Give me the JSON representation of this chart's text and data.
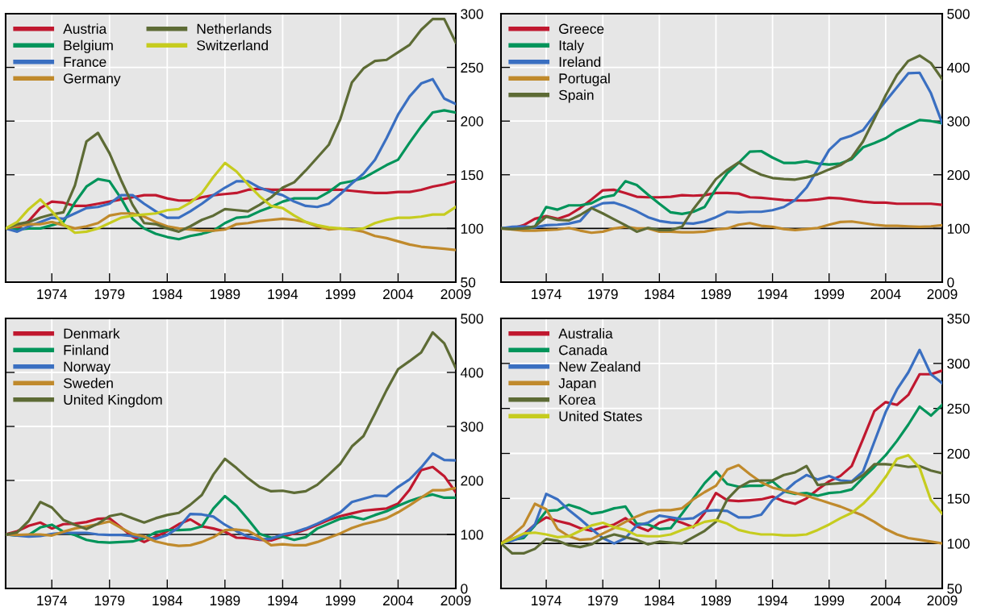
{
  "chart_data": [
    {
      "type": "line",
      "x": [
        1970,
        1971,
        1972,
        1973,
        1974,
        1975,
        1976,
        1977,
        1978,
        1979,
        1980,
        1981,
        1982,
        1983,
        1984,
        1985,
        1986,
        1987,
        1988,
        1989,
        1990,
        1991,
        1992,
        1993,
        1994,
        1995,
        1996,
        1997,
        1998,
        1999,
        2000,
        2001,
        2002,
        2003,
        2004,
        2005,
        2006,
        2007,
        2008,
        2009
      ],
      "xlim": [
        1970,
        2009
      ],
      "xticks": [
        1974,
        1979,
        1984,
        1989,
        1994,
        1999,
        2004,
        2009
      ],
      "ylim": [
        50,
        300
      ],
      "yticks": [
        50,
        100,
        150,
        200,
        250,
        300
      ],
      "grid": true,
      "legend": "top left",
      "ref_lines": [
        {
          "axis": "y",
          "value": 100,
          "color": "#000000"
        }
      ],
      "series": [
        {
          "name": "Austria",
          "color": "#c0182f",
          "values": [
            100,
            100,
            107,
            119,
            125,
            124,
            121,
            121,
            123,
            125,
            127,
            129,
            131,
            131,
            128,
            126,
            126,
            129,
            131,
            132,
            133,
            136,
            137,
            136,
            136,
            136,
            136,
            136,
            136,
            136,
            135,
            134,
            133,
            133,
            134,
            134,
            136,
            139,
            141,
            144
          ]
        },
        {
          "name": "Belgium",
          "color": "#00945a",
          "values": [
            100,
            99,
            100,
            100,
            103,
            106,
            124,
            139,
            146,
            144,
            128,
            109,
            100,
            95,
            92,
            90,
            93,
            95,
            98,
            105,
            110,
            111,
            116,
            120,
            125,
            128,
            128,
            128,
            134,
            142,
            144,
            147,
            153,
            159,
            164,
            180,
            195,
            208,
            210,
            208
          ]
        },
        {
          "name": "France",
          "color": "#3a6fc1",
          "values": [
            100,
            97,
            102,
            106,
            110,
            109,
            114,
            119,
            120,
            123,
            131,
            131,
            123,
            116,
            110,
            110,
            116,
            123,
            131,
            138,
            144,
            144,
            138,
            134,
            131,
            125,
            121,
            120,
            123,
            132,
            142,
            151,
            164,
            184,
            206,
            223,
            235,
            239,
            221,
            216
          ]
        },
        {
          "name": "Germany",
          "color": "#c08a2c",
          "values": [
            100,
            102,
            104,
            104,
            106,
            103,
            100,
            102,
            105,
            112,
            114,
            114,
            111,
            106,
            102,
            100,
            99,
            98,
            98,
            99,
            104,
            105,
            107,
            108,
            109,
            108,
            106,
            102,
            99,
            100,
            99,
            97,
            93,
            91,
            88,
            85,
            83,
            82,
            81,
            80
          ]
        },
        {
          "name": "Netherlands",
          "color": "#5d6b35",
          "values": [
            100,
            104,
            106,
            110,
            113,
            115,
            140,
            181,
            189,
            170,
            145,
            122,
            105,
            104,
            100,
            97,
            102,
            108,
            112,
            118,
            117,
            116,
            122,
            129,
            138,
            143,
            154,
            166,
            178,
            202,
            236,
            249,
            256,
            257,
            264,
            271,
            285,
            295,
            295,
            273
          ]
        },
        {
          "name": "Switzerland",
          "color": "#c6cc1f",
          "values": [
            100,
            106,
            118,
            127,
            116,
            104,
            96,
            97,
            100,
            105,
            110,
            112,
            113,
            114,
            117,
            118,
            124,
            133,
            148,
            161,
            153,
            141,
            130,
            121,
            119,
            112,
            106,
            103,
            101,
            100,
            99,
            100,
            105,
            108,
            110,
            110,
            111,
            113,
            113,
            120
          ]
        }
      ]
    },
    {
      "type": "line",
      "x": [
        1970,
        1971,
        1972,
        1973,
        1974,
        1975,
        1976,
        1977,
        1978,
        1979,
        1980,
        1981,
        1982,
        1983,
        1984,
        1985,
        1986,
        1987,
        1988,
        1989,
        1990,
        1991,
        1992,
        1993,
        1994,
        1995,
        1996,
        1997,
        1998,
        1999,
        2000,
        2001,
        2002,
        2003,
        2004,
        2005,
        2006,
        2007,
        2008,
        2009
      ],
      "xlim": [
        1970,
        2009
      ],
      "xticks": [
        1974,
        1979,
        1984,
        1989,
        1994,
        1999,
        2004,
        2009
      ],
      "ylim": [
        0,
        500
      ],
      "yticks": [
        0,
        100,
        200,
        300,
        400,
        500
      ],
      "grid": true,
      "legend": "top left",
      "ref_lines": [
        {
          "axis": "y",
          "value": 100,
          "color": "#000000"
        }
      ],
      "series": [
        {
          "name": "Greece",
          "color": "#c0182f",
          "values": [
            100,
            100,
            106,
            118,
            123,
            118,
            125,
            138,
            154,
            171,
            172,
            166,
            159,
            158,
            158,
            159,
            162,
            161,
            162,
            166,
            166,
            165,
            158,
            157,
            155,
            153,
            152,
            152,
            154,
            157,
            156,
            153,
            150,
            148,
            148,
            146,
            146,
            146,
            146,
            144
          ]
        },
        {
          "name": "Italy",
          "color": "#00945a",
          "values": [
            100,
            101,
            98,
            103,
            140,
            135,
            143,
            143,
            147,
            158,
            162,
            188,
            181,
            163,
            146,
            130,
            127,
            131,
            140,
            174,
            203,
            222,
            243,
            244,
            232,
            222,
            222,
            225,
            221,
            219,
            221,
            229,
            251,
            259,
            268,
            282,
            292,
            302,
            300,
            296
          ]
        },
        {
          "name": "Ireland",
          "color": "#3a6fc1",
          "values": [
            100,
            103,
            104,
            102,
            106,
            107,
            109,
            114,
            138,
            147,
            148,
            141,
            132,
            121,
            114,
            111,
            110,
            109,
            113,
            121,
            131,
            130,
            131,
            131,
            134,
            140,
            153,
            176,
            210,
            246,
            266,
            273,
            283,
            311,
            337,
            363,
            389,
            390,
            352,
            296
          ]
        },
        {
          "name": "Portugal",
          "color": "#c08a2c",
          "values": [
            100,
            98,
            96,
            96,
            97,
            98,
            101,
            96,
            92,
            94,
            100,
            103,
            100,
            100,
            94,
            94,
            93,
            93,
            94,
            98,
            100,
            107,
            110,
            105,
            103,
            99,
            97,
            99,
            101,
            107,
            112,
            113,
            110,
            107,
            105,
            105,
            104,
            103,
            104,
            106
          ]
        },
        {
          "name": "Spain",
          "color": "#5d6b35",
          "values": [
            100,
            99,
            100,
            104,
            122,
            116,
            115,
            125,
            138,
            128,
            117,
            106,
            94,
            101,
            97,
            97,
            103,
            136,
            163,
            192,
            209,
            223,
            210,
            200,
            194,
            192,
            191,
            195,
            201,
            210,
            218,
            232,
            262,
            304,
            348,
            386,
            412,
            422,
            408,
            378
          ]
        }
      ]
    },
    {
      "type": "line",
      "x": [
        1970,
        1971,
        1972,
        1973,
        1974,
        1975,
        1976,
        1977,
        1978,
        1979,
        1980,
        1981,
        1982,
        1983,
        1984,
        1985,
        1986,
        1987,
        1988,
        1989,
        1990,
        1991,
        1992,
        1993,
        1994,
        1995,
        1996,
        1997,
        1998,
        1999,
        2000,
        2001,
        2002,
        2003,
        2004,
        2005,
        2006,
        2007,
        2008,
        2009
      ],
      "xlim": [
        1970,
        2009
      ],
      "xticks": [
        1974,
        1979,
        1984,
        1989,
        1994,
        1999,
        2004,
        2009
      ],
      "ylim": [
        0,
        500
      ],
      "yticks": [
        0,
        100,
        200,
        300,
        400,
        500
      ],
      "grid": true,
      "legend": "top left",
      "ref_lines": [
        {
          "axis": "y",
          "value": 100,
          "color": "#000000"
        }
      ],
      "series": [
        {
          "name": "Denmark",
          "color": "#c0182f",
          "values": [
            100,
            106,
            116,
            122,
            111,
            119,
            120,
            123,
            129,
            130,
            113,
            96,
            86,
            96,
            106,
            119,
            128,
            115,
            111,
            105,
            94,
            93,
            90,
            89,
            96,
            102,
            109,
            118,
            127,
            134,
            139,
            144,
            146,
            148,
            157,
            183,
            219,
            225,
            208,
            178
          ]
        },
        {
          "name": "Finland",
          "color": "#00945a",
          "values": [
            100,
            98,
            99,
            113,
            118,
            105,
            99,
            90,
            86,
            85,
            86,
            87,
            93,
            104,
            108,
            108,
            109,
            115,
            148,
            171,
            153,
            128,
            101,
            94,
            96,
            90,
            95,
            111,
            120,
            129,
            133,
            128,
            136,
            143,
            153,
            162,
            169,
            174,
            168,
            168
          ]
        },
        {
          "name": "Norway",
          "color": "#3a6fc1",
          "values": [
            100,
            98,
            96,
            97,
            101,
            103,
            103,
            103,
            100,
            99,
            99,
            97,
            95,
            92,
            99,
            113,
            138,
            137,
            133,
            118,
            106,
            96,
            91,
            92,
            100,
            104,
            111,
            120,
            130,
            141,
            160,
            166,
            172,
            171,
            188,
            202,
            224,
            250,
            238,
            237
          ]
        },
        {
          "name": "Sweden",
          "color": "#c08a2c",
          "values": [
            100,
            99,
            100,
            100,
            98,
            105,
            111,
            115,
            119,
            124,
            112,
            101,
            96,
            87,
            82,
            79,
            80,
            86,
            95,
            108,
            109,
            107,
            95,
            80,
            82,
            80,
            80,
            86,
            94,
            102,
            112,
            119,
            124,
            130,
            141,
            154,
            168,
            182,
            182,
            186
          ]
        },
        {
          "name": "United Kingdom",
          "color": "#5d6b35",
          "values": [
            100,
            104,
            125,
            160,
            150,
            127,
            118,
            110,
            120,
            134,
            138,
            130,
            122,
            130,
            136,
            140,
            155,
            173,
            211,
            240,
            223,
            204,
            188,
            180,
            181,
            177,
            180,
            192,
            211,
            231,
            263,
            282,
            324,
            367,
            406,
            421,
            437,
            474,
            454,
            408
          ]
        }
      ]
    },
    {
      "type": "line",
      "x": [
        1970,
        1971,
        1972,
        1973,
        1974,
        1975,
        1976,
        1977,
        1978,
        1979,
        1980,
        1981,
        1982,
        1983,
        1984,
        1985,
        1986,
        1987,
        1988,
        1989,
        1990,
        1991,
        1992,
        1993,
        1994,
        1995,
        1996,
        1997,
        1998,
        1999,
        2000,
        2001,
        2002,
        2003,
        2004,
        2005,
        2006,
        2007,
        2008,
        2009
      ],
      "xlim": [
        1970,
        2009
      ],
      "xticks": [
        1974,
        1979,
        1984,
        1989,
        1994,
        1999,
        2004,
        2009
      ],
      "ylim": [
        50,
        350
      ],
      "yticks": [
        50,
        100,
        150,
        200,
        250,
        300,
        350
      ],
      "grid": true,
      "legend": "top left",
      "ref_lines": [
        {
          "axis": "y",
          "value": 100,
          "color": "#000000"
        }
      ],
      "series": [
        {
          "name": "Australia",
          "color": "#c0182f",
          "values": [
            100,
            105,
            110,
            121,
            129,
            125,
            122,
            117,
            114,
            118,
            121,
            128,
            119,
            114,
            123,
            127,
            123,
            118,
            134,
            156,
            148,
            147,
            148,
            149,
            152,
            147,
            144,
            150,
            160,
            169,
            175,
            186,
            216,
            247,
            257,
            254,
            265,
            288,
            288,
            292
          ]
        },
        {
          "name": "Canada",
          "color": "#00945a",
          "values": [
            100,
            104,
            106,
            120,
            136,
            137,
            143,
            139,
            133,
            135,
            139,
            141,
            122,
            121,
            116,
            117,
            133,
            150,
            167,
            180,
            166,
            163,
            164,
            164,
            169,
            158,
            155,
            156,
            153,
            156,
            157,
            160,
            173,
            185,
            198,
            214,
            232,
            252,
            242,
            254
          ]
        },
        {
          "name": "New Zealand",
          "color": "#3a6fc1",
          "values": [
            100,
            103,
            108,
            121,
            155,
            149,
            137,
            127,
            116,
            106,
            100,
            106,
            120,
            123,
            131,
            129,
            127,
            128,
            136,
            137,
            136,
            129,
            129,
            132,
            148,
            157,
            168,
            176,
            171,
            175,
            170,
            169,
            180,
            213,
            246,
            271,
            290,
            315,
            288,
            278
          ]
        },
        {
          "name": "Japan",
          "color": "#c08a2c",
          "values": [
            100,
            109,
            120,
            144,
            138,
            116,
            108,
            104,
            105,
            111,
            117,
            124,
            130,
            135,
            137,
            137,
            139,
            149,
            157,
            164,
            182,
            187,
            177,
            168,
            162,
            159,
            156,
            153,
            149,
            145,
            141,
            136,
            131,
            124,
            116,
            110,
            106,
            104,
            102,
            100
          ]
        },
        {
          "name": "Korea",
          "color": "#5d6b35",
          "values": [
            100,
            89,
            89,
            94,
            105,
            103,
            98,
            96,
            99,
            106,
            110,
            107,
            104,
            99,
            102,
            101,
            100,
            107,
            114,
            124,
            149,
            162,
            169,
            170,
            170,
            176,
            179,
            186,
            165,
            166,
            167,
            168,
            176,
            188,
            188,
            187,
            185,
            186,
            181,
            178
          ]
        },
        {
          "name": "United States",
          "color": "#c6cc1f",
          "values": [
            100,
            105,
            111,
            112,
            110,
            107,
            108,
            114,
            120,
            123,
            118,
            115,
            109,
            108,
            108,
            110,
            115,
            119,
            124,
            126,
            122,
            115,
            112,
            110,
            110,
            109,
            109,
            110,
            115,
            121,
            128,
            134,
            144,
            157,
            174,
            194,
            198,
            184,
            148,
            133
          ]
        }
      ]
    }
  ]
}
